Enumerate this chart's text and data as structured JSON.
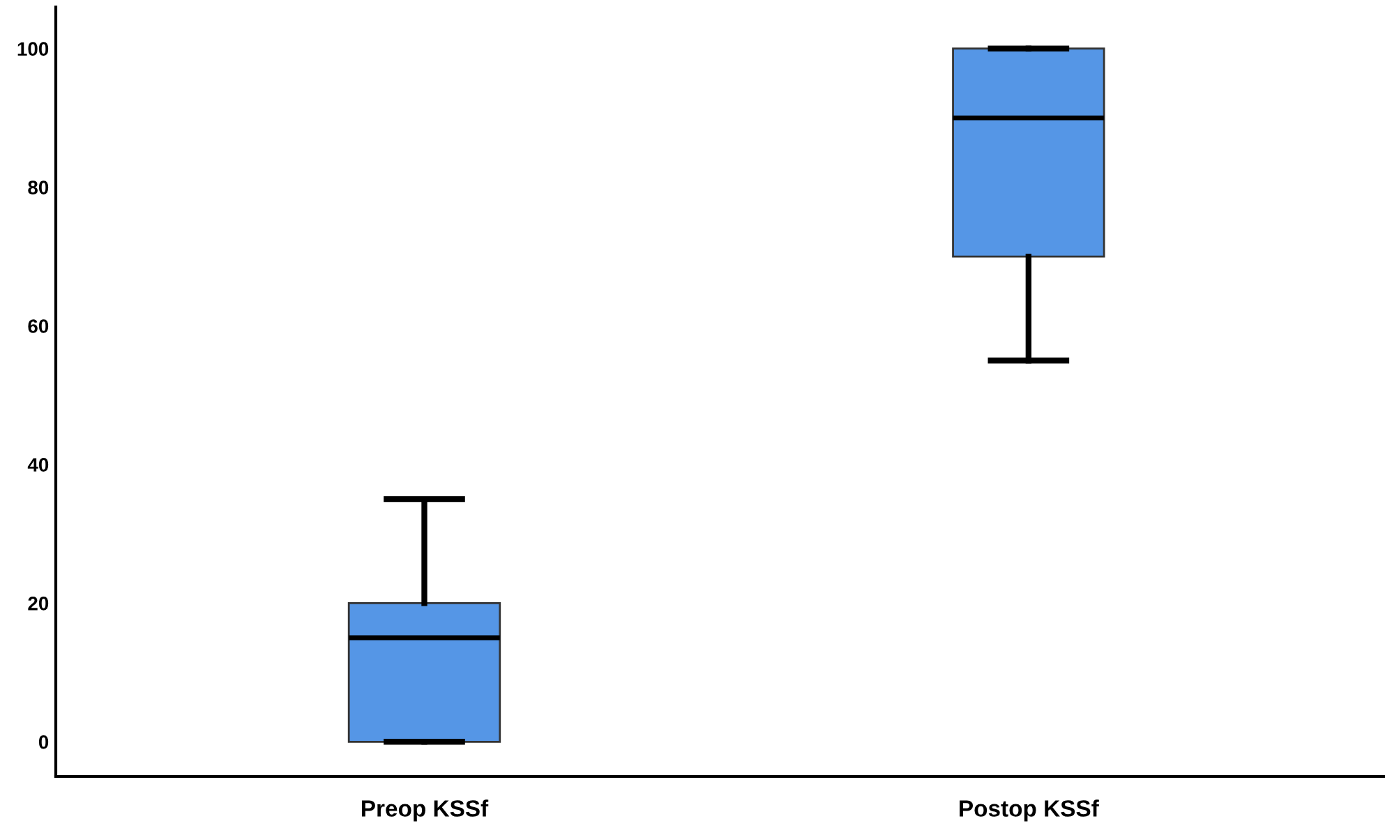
{
  "chart_data": {
    "type": "box",
    "categories": [
      "Preop KSSf",
      "Postop KSSf"
    ],
    "boxes": [
      {
        "low": 0,
        "q1": 0,
        "median": 15,
        "q3": 20,
        "high": 35
      },
      {
        "low": 55,
        "q1": 70,
        "median": 90,
        "q3": 100,
        "high": 100
      }
    ],
    "color": "#5596e6",
    "ylim": [
      -5,
      106
    ],
    "yticks": [
      0,
      20,
      40,
      60,
      80,
      100
    ],
    "grid": false
  }
}
